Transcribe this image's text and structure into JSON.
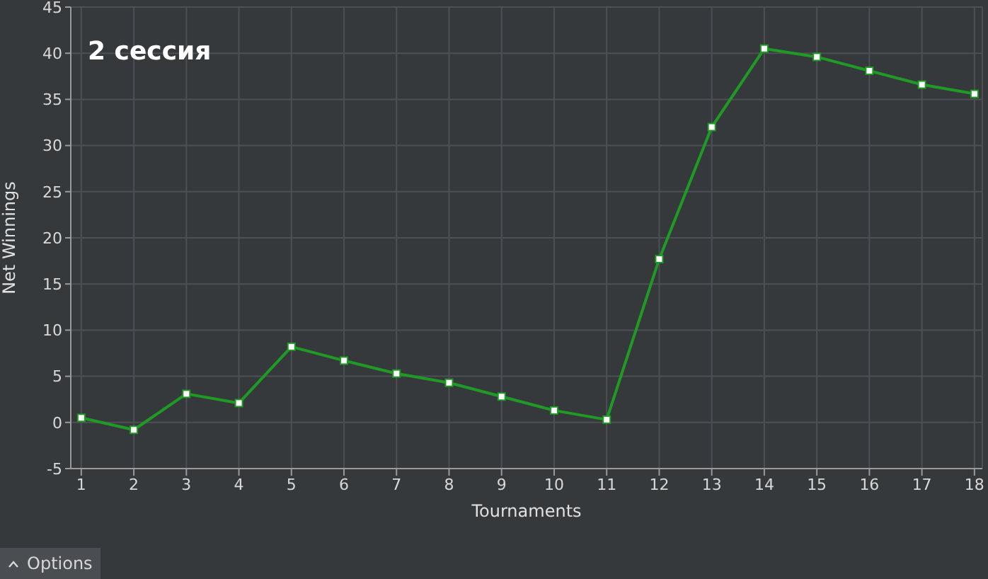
{
  "chart_data": {
    "type": "line",
    "title": "2 сессия",
    "xlabel": "Tournaments",
    "ylabel": "Net Winnings",
    "x": [
      1,
      2,
      3,
      4,
      5,
      6,
      7,
      8,
      9,
      10,
      11,
      12,
      13,
      14,
      15,
      16,
      17,
      18
    ],
    "series": [
      {
        "color": "#1f9a25",
        "values": [
          0.5,
          -0.8,
          3.1,
          2.1,
          8.2,
          6.7,
          5.3,
          4.3,
          2.8,
          1.3,
          0.3,
          17.7,
          32,
          40.5,
          39.6,
          38.1,
          36.6,
          35.6
        ]
      }
    ],
    "xlim": [
      0.8,
      18.15
    ],
    "xticks": [
      1,
      2,
      3,
      4,
      5,
      6,
      7,
      8,
      9,
      10,
      11,
      12,
      13,
      14,
      15,
      16,
      17,
      18
    ],
    "ylim": [
      -5,
      45
    ],
    "yticks": [
      -5,
      0,
      5,
      10,
      15,
      20,
      25,
      30,
      35,
      40,
      45
    ],
    "grid": true,
    "marker": "square",
    "line_style": "solid",
    "legend": false,
    "annotations": [
      "Options"
    ]
  }
}
